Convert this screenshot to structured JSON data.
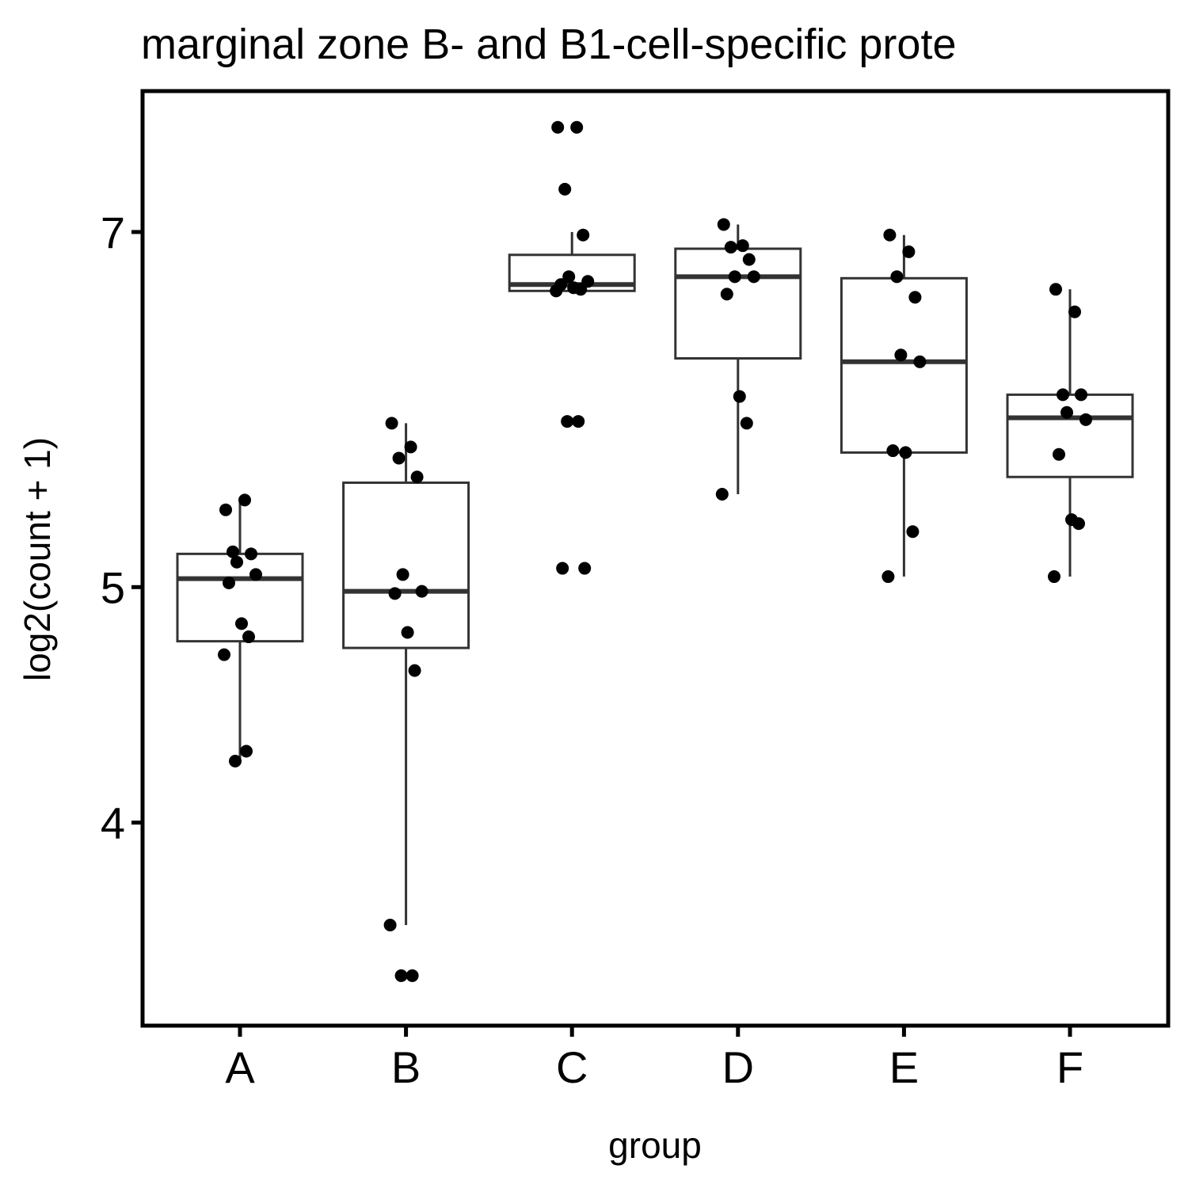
{
  "chart_data": {
    "type": "box",
    "title": "marginal zone B- and B1-cell-specific prote",
    "xlabel": "group",
    "ylabel": "log2(count + 1)",
    "y_scale": "log",
    "y_range": [
      3.3,
      8.0
    ],
    "y_ticks": [
      4,
      5,
      7
    ],
    "y_tick_labels": [
      "4",
      "5",
      "7"
    ],
    "categories": [
      "A",
      "B",
      "C",
      "D",
      "E",
      "F"
    ],
    "grid": false,
    "legend": "none",
    "colors": {
      "box_line": "#333333",
      "point": "#000000",
      "frame": "#000000"
    },
    "boxes": [
      {
        "group": "A",
        "q1": 4.75,
        "median": 5.04,
        "q3": 5.16,
        "whisker_low": 4.24,
        "whisker_high": 5.43
      },
      {
        "group": "B",
        "q1": 4.72,
        "median": 4.98,
        "q3": 5.52,
        "whisker_low": 3.63,
        "whisker_high": 5.84
      },
      {
        "group": "C",
        "q1": 6.62,
        "median": 6.66,
        "q3": 6.85,
        "whisker_low": 6.62,
        "whisker_high": 7.0
      },
      {
        "group": "D",
        "q1": 6.21,
        "median": 6.71,
        "q3": 6.89,
        "whisker_low": 5.46,
        "whisker_high": 7.05
      },
      {
        "group": "E",
        "q1": 5.68,
        "median": 6.19,
        "q3": 6.7,
        "whisker_low": 5.05,
        "whisker_high": 6.98
      },
      {
        "group": "F",
        "q1": 5.55,
        "median": 5.87,
        "q3": 6.0,
        "whisker_low": 5.05,
        "whisker_high": 6.63
      }
    ],
    "points": [
      {
        "group": "A",
        "values": [
          5.38,
          5.43,
          5.17,
          5.16,
          5.12,
          5.06,
          5.02,
          4.83,
          4.77,
          4.69,
          4.28,
          4.24
        ]
      },
      {
        "group": "B",
        "values": [
          5.84,
          5.71,
          5.65,
          5.55,
          5.06,
          4.98,
          4.97,
          4.79,
          4.62,
          3.63,
          3.46,
          3.46
        ]
      },
      {
        "group": "C",
        "values": [
          7.73,
          7.73,
          7.29,
          6.98,
          6.71,
          6.68,
          6.66,
          6.64,
          6.63,
          6.62,
          5.85,
          5.85,
          5.09,
          5.09
        ]
      },
      {
        "group": "D",
        "values": [
          7.05,
          6.91,
          6.9,
          6.82,
          6.71,
          6.71,
          6.6,
          5.99,
          5.84,
          5.46
        ]
      },
      {
        "group": "E",
        "values": [
          6.98,
          6.87,
          6.71,
          6.58,
          6.23,
          6.19,
          5.69,
          5.68,
          5.27,
          5.05
        ]
      },
      {
        "group": "F",
        "values": [
          6.63,
          6.49,
          6.0,
          6.0,
          5.9,
          5.86,
          5.67,
          5.33,
          5.31,
          5.05
        ]
      }
    ]
  }
}
